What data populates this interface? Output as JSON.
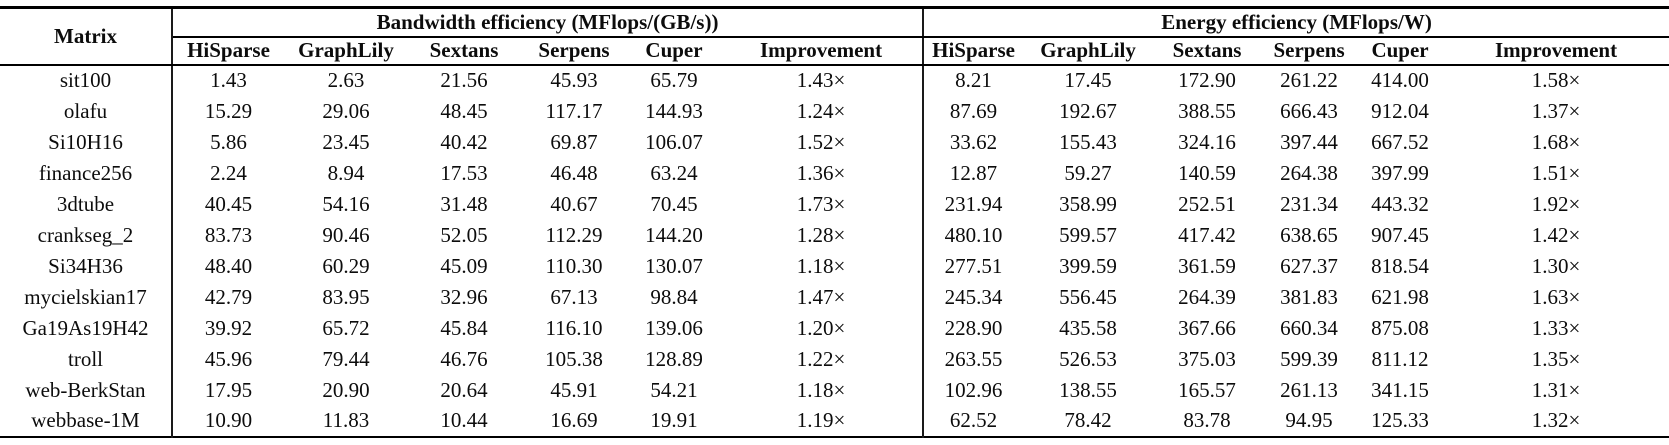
{
  "page": {
    "background": "#ffffff",
    "text_color": "#0c0c0c",
    "rule_color": "#000000"
  },
  "table": {
    "matrix_header": "Matrix",
    "groups": [
      {
        "title": "Bandwidth efficiency (MFlops/(GB/s))",
        "columns": [
          "HiSparse",
          "GraphLily",
          "Sextans",
          "Serpens",
          "Cuper",
          "Improvement"
        ]
      },
      {
        "title": "Energy efficiency (MFlops/W)",
        "columns": [
          "HiSparse",
          "GraphLily",
          "Sextans",
          "Serpens",
          "Cuper",
          "Improvement"
        ]
      }
    ],
    "rows": [
      {
        "matrix": "sit100",
        "bandwidth": [
          "1.43",
          "2.63",
          "21.56",
          "45.93",
          "65.79",
          "1.43×"
        ],
        "energy": [
          "8.21",
          "17.45",
          "172.90",
          "261.22",
          "414.00",
          "1.58×"
        ]
      },
      {
        "matrix": "olafu",
        "bandwidth": [
          "15.29",
          "29.06",
          "48.45",
          "117.17",
          "144.93",
          "1.24×"
        ],
        "energy": [
          "87.69",
          "192.67",
          "388.55",
          "666.43",
          "912.04",
          "1.37×"
        ]
      },
      {
        "matrix": "Si10H16",
        "bandwidth": [
          "5.86",
          "23.45",
          "40.42",
          "69.87",
          "106.07",
          "1.52×"
        ],
        "energy": [
          "33.62",
          "155.43",
          "324.16",
          "397.44",
          "667.52",
          "1.68×"
        ]
      },
      {
        "matrix": "finance256",
        "bandwidth": [
          "2.24",
          "8.94",
          "17.53",
          "46.48",
          "63.24",
          "1.36×"
        ],
        "energy": [
          "12.87",
          "59.27",
          "140.59",
          "264.38",
          "397.99",
          "1.51×"
        ]
      },
      {
        "matrix": "3dtube",
        "bandwidth": [
          "40.45",
          "54.16",
          "31.48",
          "40.67",
          "70.45",
          "1.73×"
        ],
        "energy": [
          "231.94",
          "358.99",
          "252.51",
          "231.34",
          "443.32",
          "1.92×"
        ]
      },
      {
        "matrix": "crankseg_2",
        "bandwidth": [
          "83.73",
          "90.46",
          "52.05",
          "112.29",
          "144.20",
          "1.28×"
        ],
        "energy": [
          "480.10",
          "599.57",
          "417.42",
          "638.65",
          "907.45",
          "1.42×"
        ]
      },
      {
        "matrix": "Si34H36",
        "bandwidth": [
          "48.40",
          "60.29",
          "45.09",
          "110.30",
          "130.07",
          "1.18×"
        ],
        "energy": [
          "277.51",
          "399.59",
          "361.59",
          "627.37",
          "818.54",
          "1.30×"
        ]
      },
      {
        "matrix": "mycielskian17",
        "bandwidth": [
          "42.79",
          "83.95",
          "32.96",
          "67.13",
          "98.84",
          "1.47×"
        ],
        "energy": [
          "245.34",
          "556.45",
          "264.39",
          "381.83",
          "621.98",
          "1.63×"
        ]
      },
      {
        "matrix": "Ga19As19H42",
        "bandwidth": [
          "39.92",
          "65.72",
          "45.84",
          "116.10",
          "139.06",
          "1.20×"
        ],
        "energy": [
          "228.90",
          "435.58",
          "367.66",
          "660.34",
          "875.08",
          "1.33×"
        ]
      },
      {
        "matrix": "troll",
        "bandwidth": [
          "45.96",
          "79.44",
          "46.76",
          "105.38",
          "128.89",
          "1.22×"
        ],
        "energy": [
          "263.55",
          "526.53",
          "375.03",
          "599.39",
          "811.12",
          "1.35×"
        ]
      },
      {
        "matrix": "web-BerkStan",
        "bandwidth": [
          "17.95",
          "20.90",
          "20.64",
          "45.91",
          "54.21",
          "1.18×"
        ],
        "energy": [
          "102.96",
          "138.55",
          "165.57",
          "261.13",
          "341.15",
          "1.31×"
        ]
      },
      {
        "matrix": "webbase-1M",
        "bandwidth": [
          "10.90",
          "11.83",
          "10.44",
          "16.69",
          "19.91",
          "1.19×"
        ],
        "energy": [
          "62.52",
          "78.42",
          "83.78",
          "94.95",
          "125.33",
          "1.32×"
        ]
      }
    ]
  }
}
